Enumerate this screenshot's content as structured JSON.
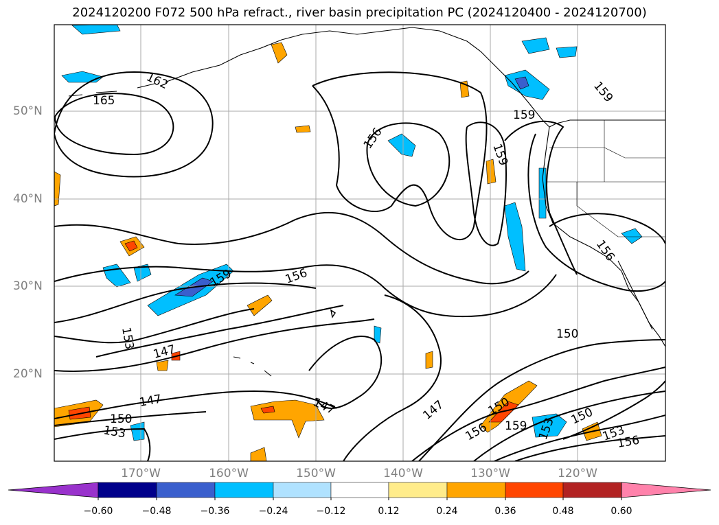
{
  "title": "2024120200 F072 500 hPa refract., river basin precipitation PC (2024120400 - 2024120700)",
  "lat_labels": [
    "50°N",
    "40°N",
    "30°N",
    "20°N"
  ],
  "lon_labels": [
    "170°W",
    "160°W",
    "150°W",
    "140°W",
    "130°W",
    "120°W"
  ],
  "colorbar": {
    "ticks": [
      "−0.60",
      "−0.48",
      "−0.36",
      "−0.24",
      "−0.12",
      "0.12",
      "0.24",
      "0.36",
      "0.48",
      "0.60"
    ],
    "colors": [
      "#9932cc",
      "#00008b",
      "#3a5fcd",
      "#00bfff",
      "#b0e2ff",
      "#ffffff",
      "#ffec8b",
      "#ffa500",
      "#ff4500",
      "#b22222",
      "#ff82ab"
    ]
  },
  "contour_labels": [
    "165",
    "162",
    "156",
    "159",
    "159",
    "159",
    "156",
    "156",
    "159",
    "153",
    "147",
    "150",
    "147",
    "150",
    "153",
    "147",
    "147",
    "150",
    "159",
    "156",
    "153",
    "150",
    "153",
    "156"
  ]
}
